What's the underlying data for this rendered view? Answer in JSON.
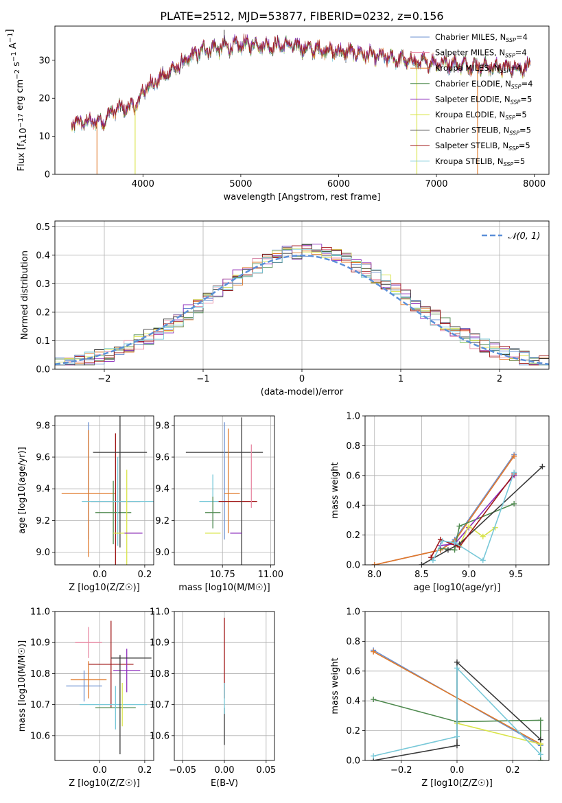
{
  "figure": {
    "title": "PLATE=2512, MJD=53877, FIBERID=0232, z=0.156"
  },
  "models": [
    {
      "name": "Chabrier MILES",
      "nssp": "4",
      "color": "#6a8fd0"
    },
    {
      "name": "Salpeter MILES",
      "nssp": "4",
      "color": "#e88aa4"
    },
    {
      "name": "Kroupa MILES",
      "nssp": "4",
      "color": "#e07a2a"
    },
    {
      "name": "Chabrier ELODIE",
      "nssp": "4",
      "color": "#4f8a4f"
    },
    {
      "name": "Salpeter ELODIE",
      "nssp": "5",
      "color": "#8d2fbd"
    },
    {
      "name": "Kroupa ELODIE",
      "nssp": "5",
      "color": "#d9e44a"
    },
    {
      "name": "Chabrier STELIB",
      "nssp": "5",
      "color": "#3a3a3a"
    },
    {
      "name": "Salpeter STELIB",
      "nssp": "5",
      "color": "#a01818"
    },
    {
      "name": "Kroupa STELIB",
      "nssp": "5",
      "color": "#78c8d8"
    }
  ],
  "chart_data": [
    {
      "id": "spectrum",
      "type": "line",
      "xlabel": "wavelength [Angstrom, rest frame]",
      "ylabel": "Flux [f_λ 10^-17 erg cm^-2 s^-1 A^-1]",
      "xlim": [
        3100,
        8150
      ],
      "ylim": [
        0,
        39
      ],
      "xticks": [
        4000,
        5000,
        6000,
        7000,
        8000
      ],
      "yticks": [
        0,
        10,
        20,
        30
      ],
      "legend": "top-right",
      "continuum": [
        [
          3270,
          13.2
        ],
        [
          3450,
          13.8
        ],
        [
          3600,
          14.0
        ],
        [
          3700,
          17.0
        ],
        [
          3850,
          17.5
        ],
        [
          3950,
          18.5
        ],
        [
          4000,
          22.0
        ],
        [
          4100,
          24.0
        ],
        [
          4200,
          25.5
        ],
        [
          4300,
          27.5
        ],
        [
          4400,
          29.0
        ],
        [
          4500,
          31.0
        ],
        [
          4600,
          32.5
        ],
        [
          4700,
          33.2
        ],
        [
          4900,
          33.6
        ],
        [
          5100,
          34.3
        ],
        [
          5300,
          33.8
        ],
        [
          5500,
          34.0
        ],
        [
          5700,
          33.0
        ],
        [
          5900,
          32.5
        ],
        [
          6200,
          31.8
        ],
        [
          6500,
          30.6
        ],
        [
          6800,
          29.5
        ],
        [
          7100,
          29.2
        ],
        [
          7400,
          28.5
        ],
        [
          7700,
          28.0
        ],
        [
          7960,
          28.2
        ]
      ],
      "features": [
        {
          "x": 3530,
          "y": 0,
          "color": "#e07a2a",
          "note": "model edge"
        },
        {
          "x": 3920,
          "y": 0,
          "color": "#d9e44a",
          "note": "model edge"
        },
        {
          "x": 6800,
          "y": 0,
          "color": "#d9e44a",
          "note": "model edge"
        },
        {
          "x": 7420,
          "y": 0,
          "color": "#e07a2a",
          "note": "model edge"
        },
        {
          "x": 4830,
          "y": 38.0,
          "color": "#3a3a3a",
          "note": "spike"
        }
      ]
    },
    {
      "id": "residual-hist",
      "type": "bar",
      "xlabel": "(data-model)/error",
      "ylabel": "Normed distribution",
      "xlim": [
        -2.5,
        2.5
      ],
      "ylim": [
        0,
        0.52
      ],
      "xticks": [
        -2,
        -1,
        0,
        1,
        2
      ],
      "yticks": [
        0.0,
        0.1,
        0.2,
        0.3,
        0.4,
        0.5
      ],
      "bin_start": -2.5,
      "bin_width": 0.1,
      "reference": {
        "name": "𝒩(0, 1)",
        "color": "#5b8fd8",
        "style": "dashed"
      },
      "legend": "top-right",
      "grid": true
    },
    {
      "id": "age-vs-Z",
      "type": "scatter",
      "xlabel": "Z [log10(Z/Z☉)]",
      "ylabel": "age [log10(age/yr)]",
      "xlim": [
        -0.2,
        0.24
      ],
      "ylim": [
        8.92,
        9.86
      ],
      "xticks": [
        0.0,
        0.2
      ],
      "yticks": [
        9.0,
        9.2,
        9.4,
        9.6,
        9.8
      ],
      "grid": true
    },
    {
      "id": "age-vs-mass",
      "type": "scatter",
      "xlabel": "mass [log10(M/M☉)]",
      "xlim": [
        10.5,
        11.02
      ],
      "ylim": [
        8.92,
        9.86
      ],
      "xticks": [
        10.75,
        11.0
      ],
      "yticks": [
        9.0,
        9.2,
        9.4,
        9.6,
        9.8
      ],
      "grid": true
    },
    {
      "id": "weight-vs-age",
      "type": "line",
      "xlabel": "age [log10(age/yr)]",
      "ylabel": "mass weight",
      "xlim": [
        7.9,
        9.85
      ],
      "ylim": [
        0,
        1.0
      ],
      "xticks": [
        8.0,
        8.5,
        9.0,
        9.5
      ],
      "yticks": [
        0.0,
        0.2,
        0.4,
        0.6,
        0.8,
        1.0
      ],
      "grid": true,
      "series": [
        {
          "model": 0,
          "points": [
            [
              8.0,
              0.0
            ],
            [
              8.7,
              0.1
            ],
            [
              8.85,
              0.17
            ],
            [
              9.48,
              0.74
            ]
          ]
        },
        {
          "model": 1,
          "points": [
            [
              8.0,
              0.0
            ],
            [
              8.7,
              0.1
            ],
            [
              8.85,
              0.16
            ],
            [
              9.48,
              0.73
            ]
          ]
        },
        {
          "model": 2,
          "points": [
            [
              8.0,
              0.0
            ],
            [
              8.7,
              0.1
            ],
            [
              8.85,
              0.16
            ],
            [
              9.48,
              0.73
            ]
          ]
        },
        {
          "model": 3,
          "points": [
            [
              8.7,
              0.11
            ],
            [
              8.85,
              0.1
            ],
            [
              8.9,
              0.26
            ],
            [
              9.48,
              0.41
            ]
          ]
        },
        {
          "model": 4,
          "points": [
            [
              8.7,
              0.13
            ],
            [
              8.85,
              0.14
            ],
            [
              9.0,
              0.25
            ],
            [
              9.48,
              0.6
            ]
          ]
        },
        {
          "model": 5,
          "points": [
            [
              8.9,
              0.13
            ],
            [
              9.0,
              0.26
            ],
            [
              9.15,
              0.19
            ],
            [
              9.28,
              0.25
            ]
          ]
        },
        {
          "model": 6,
          "points": [
            [
              8.5,
              0.0
            ],
            [
              8.78,
              0.1
            ],
            [
              8.9,
              0.14
            ],
            [
              9.78,
              0.66
            ]
          ]
        },
        {
          "model": 7,
          "points": [
            [
              8.6,
              0.05
            ],
            [
              8.7,
              0.17
            ],
            [
              8.9,
              0.12
            ],
            [
              9.48,
              0.61
            ]
          ]
        },
        {
          "model": 8,
          "points": [
            [
              8.62,
              0.03
            ],
            [
              8.72,
              0.16
            ],
            [
              8.85,
              0.15
            ],
            [
              9.15,
              0.03
            ],
            [
              9.48,
              0.62
            ]
          ]
        }
      ]
    },
    {
      "id": "mass-vs-Z",
      "type": "scatter",
      "xlabel": "Z [log10(Z/Z☉)]",
      "ylabel": "mass [log10(M/M☉)]",
      "xlim": [
        -0.2,
        0.24
      ],
      "ylim": [
        10.52,
        11.0
      ],
      "xticks": [
        0.0,
        0.2
      ],
      "yticks": [
        10.6,
        10.7,
        10.8,
        10.9,
        11.0
      ],
      "grid": true
    },
    {
      "id": "mass-vs-ebv",
      "type": "scatter",
      "xlabel": "E(B-V)",
      "xlim": [
        -0.06,
        0.06
      ],
      "ylim": [
        10.52,
        11.0
      ],
      "xticks": [
        -0.05,
        0.0,
        0.05
      ],
      "yticks": [
        10.6,
        10.7,
        10.8,
        10.9,
        11.0
      ],
      "grid": true
    },
    {
      "id": "weight-vs-Z",
      "type": "line",
      "xlabel": "Z [log10(Z/Z☉)]",
      "ylabel": "mass weight",
      "xlim": [
        -0.33,
        0.33
      ],
      "ylim": [
        0,
        1.0
      ],
      "xticks": [
        -0.2,
        0.0,
        0.2
      ],
      "yticks": [
        0.0,
        0.2,
        0.4,
        0.6,
        0.8,
        1.0
      ],
      "grid": true,
      "series": [
        {
          "model": 0,
          "points": [
            [
              -0.3,
              0.74
            ],
            [
              0.3,
              0.1
            ]
          ]
        },
        {
          "model": 2,
          "points": [
            [
              -0.3,
              0.73
            ],
            [
              0.3,
              0.11
            ]
          ]
        },
        {
          "model": 3,
          "points": [
            [
              -0.3,
              0.41
            ],
            [
              0.0,
              0.26
            ],
            [
              0.3,
              0.27
            ],
            [
              0.3,
              0.0
            ]
          ]
        },
        {
          "model": 5,
          "points": [
            [
              0.0,
              0.25
            ],
            [
              0.3,
              0.11
            ]
          ]
        },
        {
          "model": 6,
          "points": [
            [
              -0.3,
              0.0
            ],
            [
              0.0,
              0.1
            ],
            [
              0.0,
              0.66
            ],
            [
              0.3,
              0.14
            ]
          ]
        },
        {
          "model": 8,
          "points": [
            [
              -0.3,
              0.03
            ],
            [
              0.0,
              0.16
            ],
            [
              0.0,
              0.62
            ],
            [
              0.3,
              0.04
            ]
          ]
        }
      ]
    }
  ],
  "errorbars": {
    "age_Z": [
      {
        "model": 0,
        "x": -0.05,
        "xerr": 0.0,
        "y": 9.45,
        "yerr": 0.37
      },
      {
        "model": 2,
        "x": -0.05,
        "xerr": 0.12,
        "y": 9.37,
        "yerr": 0.4
      },
      {
        "model": 7,
        "x": 0.07,
        "xerr": 0.11,
        "y": 9.32,
        "yerr": 0.43
      },
      {
        "model": 3,
        "x": 0.06,
        "xerr": 0.08,
        "y": 9.25,
        "yerr": 0.2
      },
      {
        "model": 6,
        "x": 0.09,
        "xerr": 0.12,
        "y": 9.63,
        "yerr": 0.6
      },
      {
        "model": 8,
        "x": 0.08,
        "xerr": 0.16,
        "y": 9.32,
        "yerr": 0.28
      },
      {
        "model": 5,
        "x": 0.12,
        "xerr": 0.06,
        "y": 9.12,
        "yerr": 0.4
      },
      {
        "model": 4,
        "x": 0.15,
        "xerr": 0.04,
        "y": 9.12,
        "yerr": 0.0
      }
    ],
    "age_mass": [
      {
        "model": 6,
        "x": 10.76,
        "xerr": 0.2,
        "y": 9.63,
        "yerr": 0.0
      },
      {
        "model": 8,
        "x": 10.7,
        "xerr": 0.07,
        "y": 9.32,
        "yerr": 0.17
      },
      {
        "model": 3,
        "x": 10.7,
        "xerr": 0.04,
        "y": 9.25,
        "yerr": 0.1
      },
      {
        "model": 0,
        "x": 10.76,
        "xerr": 0.0,
        "y": 9.45,
        "yerr": 0.37
      },
      {
        "model": 2,
        "x": 10.78,
        "xerr": 0.0,
        "y": 9.45,
        "yerr": 0.33
      },
      {
        "model": 7,
        "x": 10.83,
        "xerr": 0.1,
        "y": 9.32,
        "yerr": 0.0
      },
      {
        "model": 6,
        "x": 10.85,
        "xerr": 0.0,
        "y": 9.38,
        "yerr": 0.47
      },
      {
        "model": 1,
        "x": 10.9,
        "xerr": 0.0,
        "y": 9.48,
        "yerr": 0.2
      },
      {
        "model": 5,
        "x": 10.7,
        "xerr": 0.04,
        "y": 9.12,
        "yerr": 0.0
      },
      {
        "model": 4,
        "x": 10.82,
        "xerr": 0.03,
        "y": 9.12,
        "yerr": 0.0
      },
      {
        "model": 2,
        "x": 10.8,
        "xerr": 0.04,
        "y": 9.37,
        "yerr": 0.0
      }
    ],
    "mass_Z": [
      {
        "model": 1,
        "x": -0.05,
        "xerr": 0.06,
        "y": 10.9,
        "yerr": 0.05
      },
      {
        "model": 0,
        "x": -0.07,
        "xerr": 0.08,
        "y": 10.76,
        "yerr": 0.05
      },
      {
        "model": 2,
        "x": -0.05,
        "xerr": 0.08,
        "y": 10.78,
        "yerr": 0.06
      },
      {
        "model": 7,
        "x": 0.05,
        "xerr": 0.1,
        "y": 10.83,
        "yerr": 0.14
      },
      {
        "model": 4,
        "x": 0.12,
        "xerr": 0.06,
        "y": 10.81,
        "yerr": 0.07
      },
      {
        "model": 6,
        "x": 0.14,
        "xerr": 0.09,
        "y": 10.85,
        "yerr": 0.0
      },
      {
        "model": 3,
        "x": 0.07,
        "xerr": 0.09,
        "y": 10.69,
        "yerr": 0.0
      },
      {
        "model": 8,
        "x": 0.06,
        "xerr": 0.15,
        "y": 10.7,
        "yerr": 0.0
      },
      {
        "model": 6,
        "x": 0.09,
        "xerr": 0.0,
        "y": 10.7,
        "yerr": 0.16
      },
      {
        "model": 5,
        "x": 0.1,
        "xerr": 0.0,
        "y": 10.7,
        "yerr": 0.07
      },
      {
        "model": 8,
        "x": 0.07,
        "xerr": 0.0,
        "y": 10.69,
        "yerr": 0.07
      }
    ],
    "mass_ebv": [
      {
        "model": 7,
        "x": 0.0,
        "xerr": 0.0,
        "y": 10.85,
        "yerr": 0.13
      },
      {
        "model": 6,
        "x": 0.0,
        "xerr": 0.0,
        "y": 10.63,
        "yerr": 0.06
      },
      {
        "model": 8,
        "x": 0.0,
        "xerr": 0.0,
        "y": 10.72,
        "yerr": 0.05
      }
    ]
  }
}
